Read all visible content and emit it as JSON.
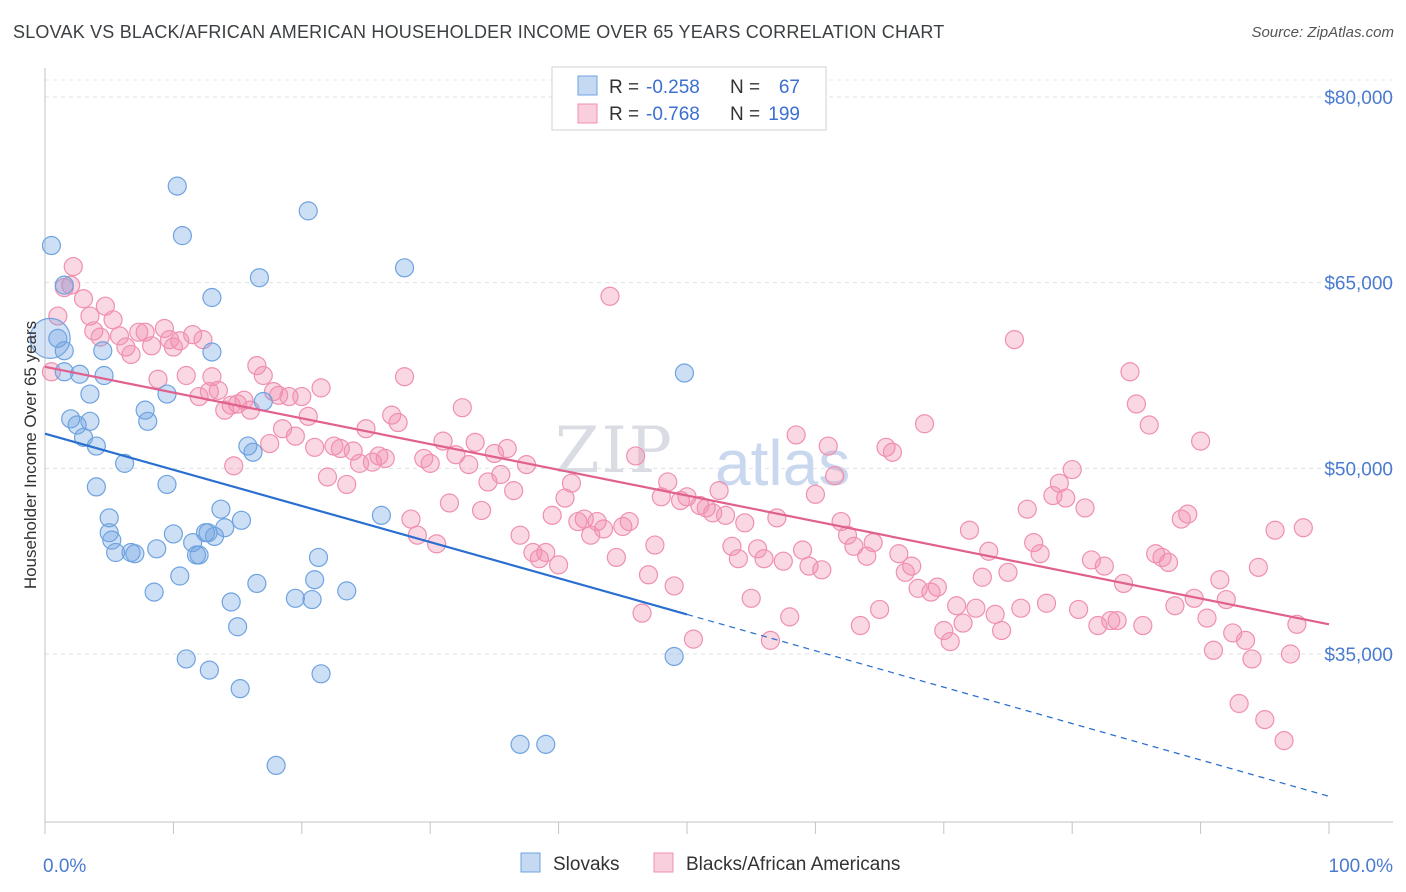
{
  "title": "SLOVAK VS BLACK/AFRICAN AMERICAN HOUSEHOLDER INCOME OVER 65 YEARS CORRELATION CHART",
  "source": "Source: ZipAtlas.com",
  "watermark": {
    "zip": "ZIP",
    "atlas": "atlas"
  },
  "colors": {
    "slovak": "#6fa3e0",
    "black": "#f08fb0",
    "slovak_line": "#2a6fd0",
    "black_line": "#e0608e",
    "axis_label": "#4a7bd0"
  },
  "legend_top": {
    "rows": [
      {
        "r_label": "R = ",
        "r_value": "-0.258",
        "n_label": "N = ",
        "n_value": "67"
      },
      {
        "r_label": "R = ",
        "r_value": "-0.768",
        "n_label": "N = ",
        "n_value": "199"
      }
    ]
  },
  "legend_bottom": {
    "slovaks": "Slovaks",
    "black": "Blacks/African Americans"
  },
  "chart_data": {
    "type": "scatter",
    "ylabel": "Householder Income Over 65 years",
    "xlabel": "",
    "xlim": [
      0,
      100
    ],
    "ylim": [
      22000,
      82000
    ],
    "x_tick_labels": [
      "0.0%",
      "100.0%"
    ],
    "y_ticks": [
      35000,
      50000,
      65000,
      80000
    ],
    "y_tick_labels": [
      "$35,000",
      "$50,000",
      "$65,000",
      "$80,000"
    ],
    "grid": "horizontal dashed",
    "legend": "top-center",
    "series": [
      {
        "name": "Slovaks",
        "trend": {
          "x0": 0,
          "y0": 52800,
          "x1": 50,
          "y1": 38200,
          "dash_to_x": 100,
          "dash_to_y": 23500
        },
        "points": [
          [
            0.5,
            68000
          ],
          [
            1,
            60500
          ],
          [
            1.5,
            59500
          ],
          [
            1.5,
            57800
          ],
          [
            1.5,
            64800
          ],
          [
            2,
            54000
          ],
          [
            2.5,
            53500
          ],
          [
            2.7,
            57600
          ],
          [
            3,
            52500
          ],
          [
            3.5,
            56000
          ],
          [
            3.5,
            53800
          ],
          [
            4,
            51800
          ],
          [
            4,
            48500
          ],
          [
            4.5,
            59500
          ],
          [
            4.6,
            57500
          ],
          [
            5,
            46000
          ],
          [
            5,
            44800
          ],
          [
            5.2,
            44200
          ],
          [
            5.5,
            43200
          ],
          [
            6.2,
            50400
          ],
          [
            6.7,
            43200
          ],
          [
            7,
            43100
          ],
          [
            7.8,
            54700
          ],
          [
            8,
            53800
          ],
          [
            8.5,
            40000
          ],
          [
            8.7,
            43500
          ],
          [
            9.5,
            56000
          ],
          [
            9.5,
            48700
          ],
          [
            10,
            44700
          ],
          [
            10.3,
            72800
          ],
          [
            10.5,
            41300
          ],
          [
            10.7,
            68800
          ],
          [
            11,
            34600
          ],
          [
            11.5,
            44000
          ],
          [
            11.8,
            43000
          ],
          [
            12,
            43000
          ],
          [
            12.5,
            44800
          ],
          [
            12.7,
            44800
          ],
          [
            12.8,
            33700
          ],
          [
            13,
            63800
          ],
          [
            13,
            59400
          ],
          [
            13.2,
            44500
          ],
          [
            13.7,
            46700
          ],
          [
            14,
            45200
          ],
          [
            14.5,
            39200
          ],
          [
            15,
            37200
          ],
          [
            15.2,
            32200
          ],
          [
            15.3,
            45800
          ],
          [
            15.8,
            51800
          ],
          [
            16.2,
            51300
          ],
          [
            16.5,
            40700
          ],
          [
            16.7,
            65400
          ],
          [
            17,
            55400
          ],
          [
            18,
            26000
          ],
          [
            19.5,
            39500
          ],
          [
            20.5,
            70800
          ],
          [
            20.8,
            39400
          ],
          [
            21,
            41000
          ],
          [
            21.3,
            42800
          ],
          [
            21.5,
            33400
          ],
          [
            23.5,
            40100
          ],
          [
            26.2,
            46200
          ],
          [
            28,
            66200
          ],
          [
            49,
            34800
          ],
          [
            49.8,
            57700
          ],
          [
            39,
            27700
          ],
          [
            37,
            27700
          ]
        ]
      },
      {
        "name": "Blacks/African Americans",
        "trend": {
          "x0": 0,
          "y0": 58200,
          "x1": 100,
          "y1": 37400
        },
        "points": [
          [
            0.5,
            57800
          ],
          [
            1,
            62300
          ],
          [
            1.5,
            64600
          ],
          [
            2,
            64800
          ],
          [
            2.2,
            66300
          ],
          [
            3,
            63700
          ],
          [
            3.5,
            62300
          ],
          [
            3.8,
            61100
          ],
          [
            4.3,
            60600
          ],
          [
            4.7,
            63100
          ],
          [
            5.3,
            62000
          ],
          [
            5.8,
            60700
          ],
          [
            6.3,
            59800
          ],
          [
            6.7,
            59200
          ],
          [
            7.3,
            61000
          ],
          [
            7.8,
            61000
          ],
          [
            8.3,
            59900
          ],
          [
            8.8,
            57200
          ],
          [
            9.3,
            61300
          ],
          [
            9.7,
            60400
          ],
          [
            10,
            59800
          ],
          [
            10.5,
            60300
          ],
          [
            11,
            57500
          ],
          [
            11.5,
            60800
          ],
          [
            12,
            55800
          ],
          [
            12.3,
            60400
          ],
          [
            12.8,
            56200
          ],
          [
            13,
            57400
          ],
          [
            13.5,
            56300
          ],
          [
            14,
            54700
          ],
          [
            14.5,
            55100
          ],
          [
            14.7,
            50200
          ],
          [
            15,
            55200
          ],
          [
            15.5,
            55500
          ],
          [
            16,
            54700
          ],
          [
            16.5,
            58300
          ],
          [
            17,
            57500
          ],
          [
            17.5,
            52000
          ],
          [
            17.8,
            56200
          ],
          [
            18.2,
            55900
          ],
          [
            18.5,
            53200
          ],
          [
            19,
            55800
          ],
          [
            19.5,
            52600
          ],
          [
            20,
            55800
          ],
          [
            20.5,
            54200
          ],
          [
            21,
            51700
          ],
          [
            21.5,
            56500
          ],
          [
            22,
            49300
          ],
          [
            22.5,
            51800
          ],
          [
            23,
            51600
          ],
          [
            23.5,
            48700
          ],
          [
            24,
            51400
          ],
          [
            24.5,
            50400
          ],
          [
            25,
            53200
          ],
          [
            25.5,
            50500
          ],
          [
            26,
            51000
          ],
          [
            26.5,
            50800
          ],
          [
            27,
            54300
          ],
          [
            27.5,
            53700
          ],
          [
            28,
            57400
          ],
          [
            28.5,
            45900
          ],
          [
            29,
            44600
          ],
          [
            29.5,
            50800
          ],
          [
            30,
            50400
          ],
          [
            30.5,
            43900
          ],
          [
            31,
            52200
          ],
          [
            31.5,
            47200
          ],
          [
            32,
            51100
          ],
          [
            32.5,
            54900
          ],
          [
            33,
            50300
          ],
          [
            33.5,
            52100
          ],
          [
            34,
            46600
          ],
          [
            34.5,
            48900
          ],
          [
            35,
            51200
          ],
          [
            35.5,
            49500
          ],
          [
            36,
            51600
          ],
          [
            36.5,
            48200
          ],
          [
            37,
            44600
          ],
          [
            37.5,
            50300
          ],
          [
            38,
            43200
          ],
          [
            38.5,
            42700
          ],
          [
            39,
            43200
          ],
          [
            39.5,
            46200
          ],
          [
            40,
            42200
          ],
          [
            40.5,
            47600
          ],
          [
            41,
            48800
          ],
          [
            41.5,
            45700
          ],
          [
            42,
            45900
          ],
          [
            42.5,
            44600
          ],
          [
            43,
            45700
          ],
          [
            43.5,
            45100
          ],
          [
            44,
            63900
          ],
          [
            44.5,
            42800
          ],
          [
            45,
            45300
          ],
          [
            45.5,
            45700
          ],
          [
            46,
            51000
          ],
          [
            46.5,
            38300
          ],
          [
            47,
            41400
          ],
          [
            47.5,
            43800
          ],
          [
            48,
            47700
          ],
          [
            48.5,
            48900
          ],
          [
            49,
            40500
          ],
          [
            49.5,
            47400
          ],
          [
            50,
            47700
          ],
          [
            50.5,
            36200
          ],
          [
            51,
            47000
          ],
          [
            51.5,
            46800
          ],
          [
            52,
            46400
          ],
          [
            52.5,
            48200
          ],
          [
            53,
            46200
          ],
          [
            53.5,
            43700
          ],
          [
            54,
            42700
          ],
          [
            54.5,
            45600
          ],
          [
            55,
            39500
          ],
          [
            55.5,
            43500
          ],
          [
            56,
            42700
          ],
          [
            56.5,
            36100
          ],
          [
            57,
            46000
          ],
          [
            57.5,
            42500
          ],
          [
            58,
            38000
          ],
          [
            58.5,
            52700
          ],
          [
            59,
            43400
          ],
          [
            59.5,
            42100
          ],
          [
            60,
            47900
          ],
          [
            60.5,
            41800
          ],
          [
            61,
            51800
          ],
          [
            61.5,
            49400
          ],
          [
            62,
            45700
          ],
          [
            62.5,
            44600
          ],
          [
            63,
            43700
          ],
          [
            63.5,
            37300
          ],
          [
            64,
            42900
          ],
          [
            64.5,
            44000
          ],
          [
            65,
            38600
          ],
          [
            65.5,
            51700
          ],
          [
            66,
            51300
          ],
          [
            66.5,
            43100
          ],
          [
            67,
            41600
          ],
          [
            67.5,
            42100
          ],
          [
            68,
            40300
          ],
          [
            68.5,
            53600
          ],
          [
            69,
            40000
          ],
          [
            69.5,
            40400
          ],
          [
            70,
            36900
          ],
          [
            70.5,
            36000
          ],
          [
            71,
            38900
          ],
          [
            71.5,
            37500
          ],
          [
            72,
            45000
          ],
          [
            72.5,
            38700
          ],
          [
            73,
            41200
          ],
          [
            73.5,
            43300
          ],
          [
            74,
            38200
          ],
          [
            74.5,
            36900
          ],
          [
            75,
            41600
          ],
          [
            75.5,
            60400
          ],
          [
            76,
            38700
          ],
          [
            76.5,
            46700
          ],
          [
            77,
            44000
          ],
          [
            77.5,
            43100
          ],
          [
            78,
            39100
          ],
          [
            78.5,
            47800
          ],
          [
            79,
            48800
          ],
          [
            79.5,
            47600
          ],
          [
            80,
            49900
          ],
          [
            80.5,
            38600
          ],
          [
            81,
            46800
          ],
          [
            81.5,
            42600
          ],
          [
            82,
            37300
          ],
          [
            82.5,
            42100
          ],
          [
            83,
            37700
          ],
          [
            83.5,
            37700
          ],
          [
            84,
            40700
          ],
          [
            84.5,
            57800
          ],
          [
            85,
            55200
          ],
          [
            85.5,
            37300
          ],
          [
            86,
            53500
          ],
          [
            86.5,
            43100
          ],
          [
            87,
            42800
          ],
          [
            87.5,
            42400
          ],
          [
            88,
            38900
          ],
          [
            88.5,
            45900
          ],
          [
            89,
            46300
          ],
          [
            89.5,
            39500
          ],
          [
            90,
            52200
          ],
          [
            90.5,
            37900
          ],
          [
            91,
            35300
          ],
          [
            91.5,
            41000
          ],
          [
            92,
            39400
          ],
          [
            92.5,
            36700
          ],
          [
            93,
            31000
          ],
          [
            93.5,
            36100
          ],
          [
            94,
            34600
          ],
          [
            94.5,
            42000
          ],
          [
            95,
            29700
          ],
          [
            95.8,
            45000
          ],
          [
            96.5,
            28000
          ],
          [
            97,
            35000
          ],
          [
            97.5,
            37400
          ],
          [
            98,
            45200
          ]
        ]
      }
    ]
  }
}
